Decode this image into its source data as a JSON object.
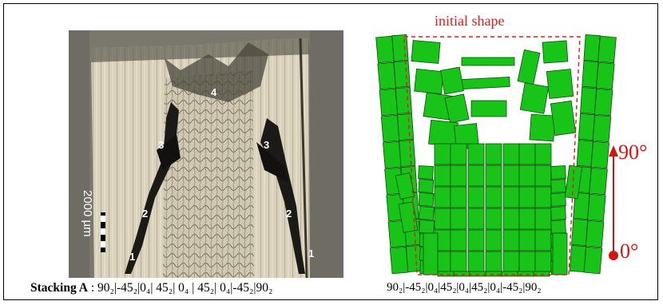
{
  "micrograph": {
    "scale_bar_label": "2000 µm",
    "crack_labels": [
      "1",
      "2",
      "3",
      "4",
      "3",
      "2",
      "1"
    ]
  },
  "caption_left": {
    "bold": "Stacking A",
    "rest": " : 90₂|-45₂|0₄| 45₂| 0₄ | 45₂|  0₄|-45₂|90₂"
  },
  "simulation": {
    "initial_shape_label": "initial shape",
    "angle_top": "90°",
    "angle_bottom": "0°",
    "block_color": "#19c419",
    "block_stroke": "#0a4d0a",
    "dashed_color": "#e01b1b"
  },
  "caption_right": "90₂|-45₂|0₄|45₂|0₄|45₂|0₄|-45₂|90₂"
}
